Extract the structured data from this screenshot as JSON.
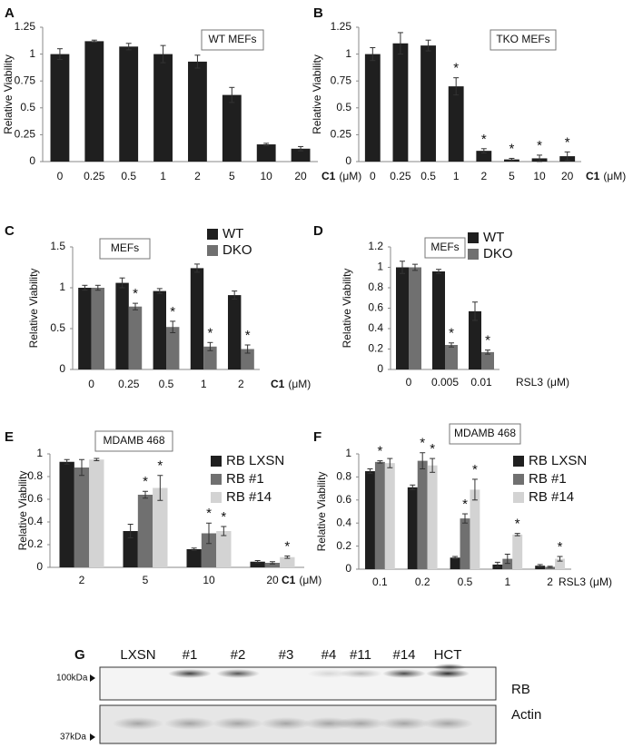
{
  "chart_data": [
    {
      "type": "bar",
      "letter": "A",
      "ylabel": "Relative Viability",
      "annotation": "WT MEFs",
      "xlabel": "C1",
      "xlabel_bold": true,
      "xunit": "(μM)",
      "categories": [
        "0",
        "0.25",
        "0.5",
        "1",
        "2",
        "5",
        "10",
        "20"
      ],
      "values": [
        1.0,
        1.12,
        1.07,
        1.0,
        0.93,
        0.62,
        0.16,
        0.12
      ],
      "errors": [
        0.05,
        0.01,
        0.03,
        0.08,
        0.06,
        0.07,
        0.01,
        0.02
      ],
      "stars": [
        null,
        null,
        null,
        null,
        null,
        null,
        null,
        null
      ],
      "color": "#1f1f1f",
      "ylim": [
        0,
        1.25
      ],
      "yticks": [
        0,
        0.25,
        0.5,
        0.75,
        1,
        1.25
      ]
    },
    {
      "type": "bar",
      "letter": "B",
      "ylabel": "Relative Viability",
      "annotation": "TKO MEFs",
      "xlabel": "C1",
      "xlabel_bold": true,
      "xunit": "(μM)",
      "categories": [
        "0",
        "0.25",
        "0.5",
        "1",
        "2",
        "5",
        "10",
        "20"
      ],
      "values": [
        1.0,
        1.1,
        1.08,
        0.7,
        0.1,
        0.02,
        0.03,
        0.05
      ],
      "errors": [
        0.06,
        0.1,
        0.05,
        0.08,
        0.02,
        0.01,
        0.03,
        0.04
      ],
      "stars": [
        null,
        null,
        null,
        "*",
        "*",
        "*",
        "*",
        "*"
      ],
      "color": "#1f1f1f",
      "ylim": [
        0,
        1.25
      ],
      "yticks": [
        0,
        0.25,
        0.5,
        0.75,
        1,
        1.25
      ]
    },
    {
      "type": "bar",
      "letter": "C",
      "ylabel": "Relative Viability",
      "annotation": "MEFs",
      "xlabel": "C1",
      "xlabel_bold": true,
      "xunit": "(μM)",
      "categories": [
        "0",
        "0.25",
        "0.5",
        "1",
        "2"
      ],
      "series": [
        {
          "name": "WT",
          "color": "#1f1f1f",
          "values": [
            1.0,
            1.06,
            0.96,
            1.24,
            0.91
          ],
          "errors": [
            0.03,
            0.06,
            0.03,
            0.05,
            0.05
          ],
          "stars": [
            null,
            null,
            null,
            null,
            null
          ]
        },
        {
          "name": "DKO",
          "color": "#707070",
          "values": [
            1.0,
            0.77,
            0.52,
            0.28,
            0.25
          ],
          "errors": [
            0.03,
            0.04,
            0.07,
            0.05,
            0.05
          ],
          "stars": [
            null,
            "*",
            "*",
            "*",
            "*"
          ]
        }
      ],
      "legend": "upper right",
      "ylim": [
        0,
        1.5
      ],
      "yticks": [
        0,
        0.5,
        1,
        1.5
      ]
    },
    {
      "type": "bar",
      "letter": "D",
      "ylabel": "Relative Viability",
      "annotation": "MEFs",
      "xlabel": "RSL3",
      "xlabel_bold": false,
      "xunit": "(μM)",
      "categories": [
        "0",
        "0.005",
        "0.01"
      ],
      "series": [
        {
          "name": "WT",
          "color": "#1f1f1f",
          "values": [
            1.0,
            0.96,
            0.57
          ],
          "errors": [
            0.06,
            0.02,
            0.09
          ],
          "stars": [
            null,
            null,
            null
          ]
        },
        {
          "name": "DKO",
          "color": "#707070",
          "values": [
            1.0,
            0.24,
            0.17
          ],
          "errors": [
            0.03,
            0.02,
            0.02
          ],
          "stars": [
            null,
            "*",
            "*"
          ]
        }
      ],
      "legend": "upper right",
      "ylim": [
        0,
        1.2
      ],
      "yticks": [
        0,
        0.2,
        0.4,
        0.6,
        0.8,
        1,
        1.2
      ]
    },
    {
      "type": "bar",
      "letter": "E",
      "ylabel": "Relative Viability",
      "annotation": "MDAMB 468",
      "xlabel": "C1",
      "xlabel_bold": true,
      "xunit": "(μM)",
      "categories": [
        "2",
        "5",
        "10",
        "20"
      ],
      "series": [
        {
          "name": "RB LXSN",
          "color": "#1f1f1f",
          "values": [
            0.93,
            0.32,
            0.16,
            0.05
          ],
          "errors": [
            0.02,
            0.06,
            0.01,
            0.01
          ],
          "stars": [
            null,
            null,
            null,
            null
          ]
        },
        {
          "name": "RB #1",
          "color": "#707070",
          "values": [
            0.88,
            0.64,
            0.3,
            0.04
          ],
          "errors": [
            0.07,
            0.03,
            0.09,
            0.01
          ],
          "stars": [
            null,
            "*",
            "*",
            null
          ]
        },
        {
          "name": "RB #14",
          "color": "#d3d3d3",
          "values": [
            0.95,
            0.7,
            0.32,
            0.09
          ],
          "errors": [
            0.01,
            0.11,
            0.04,
            0.01
          ],
          "stars": [
            null,
            "*",
            "*",
            "*"
          ]
        }
      ],
      "legend": "upper right",
      "ylim": [
        0,
        1
      ],
      "yticks": [
        0,
        0.2,
        0.4,
        0.6,
        0.8,
        1
      ]
    },
    {
      "type": "bar",
      "letter": "F",
      "ylabel": "Relative Viability",
      "annotation": "MDAMB 468",
      "xlabel": "RSL3",
      "xlabel_bold": false,
      "xunit": "(μM)",
      "categories": [
        "0.1",
        "0.2",
        "0.5",
        "1",
        "2"
      ],
      "series": [
        {
          "name": "RB LXSN",
          "color": "#1f1f1f",
          "values": [
            0.85,
            0.71,
            0.1,
            0.04,
            0.03
          ],
          "errors": [
            0.02,
            0.02,
            0.01,
            0.02,
            0.01
          ],
          "stars": [
            null,
            null,
            null,
            null,
            null
          ]
        },
        {
          "name": "RB #1",
          "color": "#707070",
          "values": [
            0.93,
            0.94,
            0.44,
            0.09,
            0.02
          ],
          "errors": [
            0.01,
            0.07,
            0.04,
            0.04,
            0.005
          ],
          "stars": [
            "*",
            "*",
            "*",
            null,
            null
          ]
        },
        {
          "name": "RB #14",
          "color": "#d3d3d3",
          "values": [
            0.92,
            0.9,
            0.69,
            0.3,
            0.09
          ],
          "errors": [
            0.04,
            0.06,
            0.09,
            0.01,
            0.02
          ],
          "stars": [
            null,
            "*",
            "*",
            "*",
            "*"
          ]
        }
      ],
      "legend": "upper right",
      "ylim": [
        0,
        1
      ],
      "yticks": [
        0,
        0.2,
        0.4,
        0.6,
        0.8,
        1
      ]
    }
  ],
  "blot": {
    "letter": "G",
    "lanes": [
      "LXSN",
      "#1",
      "#2",
      "#3",
      "#4",
      "#11",
      "#14",
      "HCT"
    ],
    "bands": [
      "RB",
      "Actin"
    ],
    "markers": [
      "100kDa",
      "37kDa"
    ]
  }
}
